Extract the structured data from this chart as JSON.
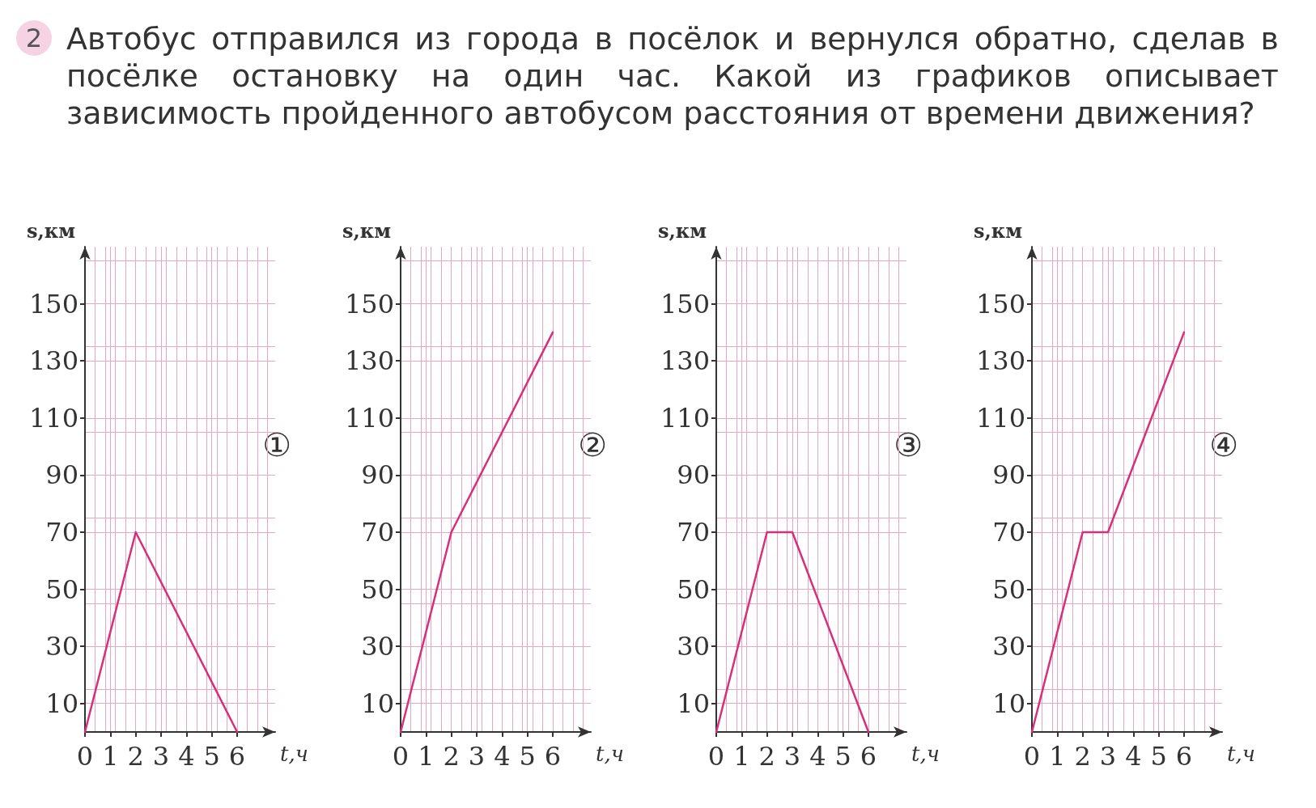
{
  "chart_data": [
    {
      "type": "line",
      "title": "Автобус отправился из города в посёлок и вернулся обратно, сделав в посёлке остановку на один час. Какой из графиков описывает зависимость пройденного автобусом расстояния от времени движения?",
      "annotations": [
        "2",
        "①"
      ],
      "xlabel": "t,ч",
      "ylabel": "s,км",
      "x": [
        0,
        2,
        6
      ],
      "series": [
        {
          "color": "#d6307a",
          "values": [
            0,
            70,
            0
          ]
        }
      ],
      "xlim": [
        0,
        7.5
      ],
      "ylim": [
        0,
        170
      ],
      "xticks": [
        0,
        1,
        2,
        3,
        4,
        5,
        6
      ],
      "yticks": [
        10,
        30,
        50,
        70,
        90,
        110,
        130,
        150
      ],
      "grid": true,
      "marker": "none",
      "line_style": "solid"
    },
    {
      "type": "line",
      "annotations": [
        "②"
      ],
      "xlabel": "t,ч",
      "ylabel": "s,км",
      "x": [
        0,
        2,
        6
      ],
      "series": [
        {
          "color": "#d6307a",
          "values": [
            0,
            70,
            140
          ]
        }
      ],
      "xlim": [
        0,
        7.5
      ],
      "ylim": [
        0,
        170
      ],
      "xticks": [
        0,
        1,
        2,
        3,
        4,
        5,
        6
      ],
      "yticks": [
        10,
        30,
        50,
        70,
        90,
        110,
        130,
        150
      ],
      "grid": true,
      "marker": "none",
      "line_style": "solid"
    },
    {
      "type": "line",
      "annotations": [
        "③"
      ],
      "xlabel": "t,ч",
      "ylabel": "s,км",
      "x": [
        0,
        2,
        3,
        6
      ],
      "series": [
        {
          "color": "#d6307a",
          "values": [
            0,
            70,
            70,
            0
          ]
        }
      ],
      "xlim": [
        0,
        7.5
      ],
      "ylim": [
        0,
        170
      ],
      "xticks": [
        0,
        1,
        2,
        3,
        4,
        5,
        6
      ],
      "yticks": [
        10,
        30,
        50,
        70,
        90,
        110,
        130,
        150
      ],
      "grid": true,
      "marker": "none",
      "line_style": "solid"
    },
    {
      "type": "line",
      "annotations": [
        "④"
      ],
      "xlabel": "t,ч",
      "ylabel": "s,км",
      "x": [
        0,
        2,
        3,
        6
      ],
      "series": [
        {
          "color": "#d6307a",
          "values": [
            0,
            70,
            70,
            140
          ]
        }
      ],
      "xlim": [
        0,
        7.5
      ],
      "ylim": [
        0,
        170
      ],
      "xticks": [
        0,
        1,
        2,
        3,
        4,
        5,
        6
      ],
      "yticks": [
        10,
        30,
        50,
        70,
        90,
        110,
        130,
        150
      ],
      "grid": true,
      "marker": "none",
      "line_style": "solid"
    }
  ]
}
